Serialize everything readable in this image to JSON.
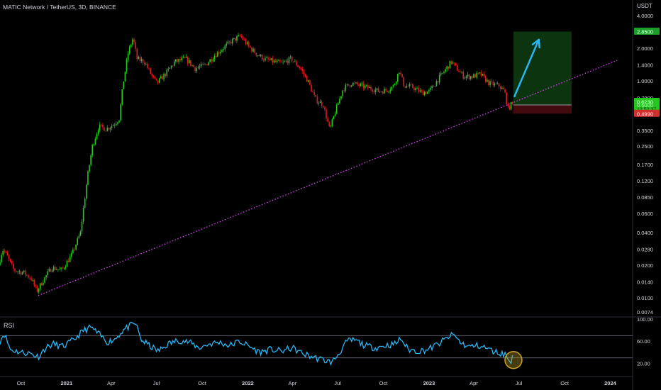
{
  "header": {
    "title": "MATIC Network / TetherUS, 3D, BINANCE"
  },
  "price_axis": {
    "unit": "USDT",
    "ticks": [
      "4.0000",
      "2.8500",
      "2.0000",
      "1.4000",
      "1.0000",
      "0.7000",
      "0.6230",
      "0.6000",
      "0.4990",
      "0.3500",
      "0.2500",
      "0.1700",
      "0.1200",
      "0.0850",
      "0.0600",
      "0.0400",
      "0.0280",
      "0.0200",
      "0.0140",
      "0.0100",
      "0.0074"
    ],
    "current_price": "0.6230",
    "countdown": "12:52:37",
    "target_price": "2.8500",
    "entry_price": "0.6000",
    "stop_price": "0.4990"
  },
  "time_axis": {
    "ticks": [
      "Oct",
      "2021",
      "Apr",
      "Jul",
      "Oct",
      "2022",
      "Apr",
      "Jul",
      "Oct",
      "2023",
      "Apr",
      "Jul",
      "Oct",
      "2024"
    ]
  },
  "rsi_panel": {
    "label": "RSI",
    "ticks": [
      "100.00",
      "60.00",
      "20.00"
    ]
  },
  "colors": {
    "up": "#26a69a",
    "candle_up": "#26c91c",
    "candle_down": "#e01b24",
    "trendline": "#e040fb",
    "rsi": "#29b6f6",
    "arrow": "#29b6f6",
    "target_zone": "#0d3d12",
    "stop_zone": "#4a0c10",
    "target_label": "#1b9e2a",
    "current_label": "#22c91c",
    "stop_label": "#d32f2f"
  },
  "chart_data": {
    "type": "candlestick",
    "title": "MATIC Network / TetherUS, 3D, BINANCE",
    "y_scale": "log",
    "ylim": [
      0.0074,
      4.0
    ],
    "xlim": [
      "2020-08-20",
      "2024-02-15"
    ],
    "price_path": [
      [
        "2020-08-20",
        0.02
      ],
      [
        "2020-08-28",
        0.028
      ],
      [
        "2020-09-05",
        0.025
      ],
      [
        "2020-09-20",
        0.018
      ],
      [
        "2020-10-10",
        0.017
      ],
      [
        "2020-10-25",
        0.015
      ],
      [
        "2020-11-05",
        0.0115
      ],
      [
        "2020-11-20",
        0.015
      ],
      [
        "2020-12-05",
        0.019
      ],
      [
        "2020-12-25",
        0.018
      ],
      [
        "2021-01-15",
        0.025
      ],
      [
        "2021-02-01",
        0.04
      ],
      [
        "2021-02-15",
        0.13
      ],
      [
        "2021-02-25",
        0.25
      ],
      [
        "2021-03-10",
        0.38
      ],
      [
        "2021-03-25",
        0.36
      ],
      [
        "2021-04-10",
        0.4
      ],
      [
        "2021-04-20",
        0.45
      ],
      [
        "2021-04-28",
        0.95
      ],
      [
        "2021-05-08",
        1.8
      ],
      [
        "2021-05-18",
        2.5
      ],
      [
        "2021-05-26",
        1.6
      ],
      [
        "2021-06-10",
        1.5
      ],
      [
        "2021-06-25",
        1.1
      ],
      [
        "2021-07-05",
        0.95
      ],
      [
        "2021-07-25",
        1.2
      ],
      [
        "2021-08-10",
        1.5
      ],
      [
        "2021-09-01",
        1.6
      ],
      [
        "2021-09-20",
        1.3
      ],
      [
        "2021-10-10",
        1.4
      ],
      [
        "2021-10-28",
        1.7
      ],
      [
        "2021-11-15",
        2.0
      ],
      [
        "2021-12-01",
        2.3
      ],
      [
        "2021-12-20",
        2.6
      ],
      [
        "2022-01-05",
        2.1
      ],
      [
        "2022-01-20",
        1.8
      ],
      [
        "2022-02-05",
        1.6
      ],
      [
        "2022-02-25",
        1.5
      ],
      [
        "2022-03-15",
        1.45
      ],
      [
        "2022-04-01",
        1.6
      ],
      [
        "2022-04-20",
        1.3
      ],
      [
        "2022-05-05",
        1.0
      ],
      [
        "2022-05-20",
        0.68
      ],
      [
        "2022-06-05",
        0.6
      ],
      [
        "2022-06-18",
        0.35
      ],
      [
        "2022-06-28",
        0.5
      ],
      [
        "2022-07-15",
        0.85
      ],
      [
        "2022-08-01",
        0.95
      ],
      [
        "2022-08-20",
        0.9
      ],
      [
        "2022-09-10",
        0.85
      ],
      [
        "2022-09-25",
        0.8
      ],
      [
        "2022-10-10",
        0.82
      ],
      [
        "2022-10-25",
        0.9
      ],
      [
        "2022-11-05",
        1.25
      ],
      [
        "2022-11-15",
        0.9
      ],
      [
        "2022-12-01",
        0.88
      ],
      [
        "2022-12-20",
        0.78
      ],
      [
        "2023-01-05",
        0.8
      ],
      [
        "2023-01-20",
        1.0
      ],
      [
        "2023-02-05",
        1.25
      ],
      [
        "2023-02-18",
        1.5
      ],
      [
        "2023-03-01",
        1.3
      ],
      [
        "2023-03-15",
        1.1
      ],
      [
        "2023-04-01",
        1.1
      ],
      [
        "2023-04-18",
        1.15
      ],
      [
        "2023-05-05",
        0.95
      ],
      [
        "2023-05-25",
        0.9
      ],
      [
        "2023-06-05",
        0.8
      ],
      [
        "2023-06-12",
        0.55
      ],
      [
        "2023-06-20",
        0.62
      ]
    ],
    "trendline": [
      [
        "2020-11-05",
        0.0105
      ],
      [
        "2024-01-15",
        1.55
      ]
    ],
    "projection_arrow": [
      [
        "2023-06-22",
        0.72
      ],
      [
        "2023-08-10",
        2.4
      ]
    ],
    "position_box": {
      "start": "2023-06-20",
      "end": "2023-10-15",
      "target": 2.85,
      "entry": 0.6,
      "stop": 0.499
    },
    "rsi": {
      "ylim": [
        0,
        100
      ],
      "levels": [
        70,
        30
      ],
      "values": [
        [
          "2020-08-20",
          60
        ],
        [
          "2020-08-28",
          75
        ],
        [
          "2020-09-10",
          45
        ],
        [
          "2020-10-01",
          40
        ],
        [
          "2020-10-20",
          38
        ],
        [
          "2020-11-05",
          32
        ],
        [
          "2020-11-20",
          48
        ],
        [
          "2020-12-05",
          55
        ],
        [
          "2020-12-25",
          50
        ],
        [
          "2021-01-15",
          62
        ],
        [
          "2021-02-05",
          80
        ],
        [
          "2021-02-20",
          85
        ],
        [
          "2021-03-10",
          70
        ],
        [
          "2021-03-25",
          58
        ],
        [
          "2021-04-10",
          65
        ],
        [
          "2021-04-25",
          80
        ],
        [
          "2021-05-10",
          88
        ],
        [
          "2021-05-20",
          92
        ],
        [
          "2021-06-01",
          62
        ],
        [
          "2021-06-20",
          50
        ],
        [
          "2021-07-05",
          42
        ],
        [
          "2021-07-25",
          55
        ],
        [
          "2021-08-15",
          62
        ],
        [
          "2021-09-05",
          58
        ],
        [
          "2021-09-25",
          48
        ],
        [
          "2021-10-15",
          55
        ],
        [
          "2021-11-05",
          58
        ],
        [
          "2021-11-25",
          52
        ],
        [
          "2021-12-15",
          60
        ],
        [
          "2022-01-05",
          50
        ],
        [
          "2022-01-25",
          40
        ],
        [
          "2022-02-15",
          45
        ],
        [
          "2022-03-10",
          42
        ],
        [
          "2022-04-01",
          48
        ],
        [
          "2022-04-20",
          38
        ],
        [
          "2022-05-10",
          32
        ],
        [
          "2022-05-25",
          28
        ],
        [
          "2022-06-10",
          24
        ],
        [
          "2022-06-20",
          22
        ],
        [
          "2022-07-05",
          40
        ],
        [
          "2022-07-20",
          60
        ],
        [
          "2022-08-05",
          62
        ],
        [
          "2022-08-25",
          52
        ],
        [
          "2022-09-15",
          48
        ],
        [
          "2022-10-05",
          52
        ],
        [
          "2022-10-25",
          55
        ],
        [
          "2022-11-05",
          65
        ],
        [
          "2022-11-20",
          45
        ],
        [
          "2022-12-10",
          42
        ],
        [
          "2022-12-30",
          45
        ],
        [
          "2023-01-20",
          55
        ],
        [
          "2023-02-10",
          68
        ],
        [
          "2023-02-20",
          72
        ],
        [
          "2023-03-05",
          58
        ],
        [
          "2023-03-20",
          50
        ],
        [
          "2023-04-10",
          52
        ],
        [
          "2023-04-25",
          48
        ],
        [
          "2023-05-10",
          42
        ],
        [
          "2023-05-25",
          38
        ],
        [
          "2023-06-05",
          36
        ],
        [
          "2023-06-12",
          22
        ],
        [
          "2023-06-20",
          32
        ]
      ]
    }
  }
}
